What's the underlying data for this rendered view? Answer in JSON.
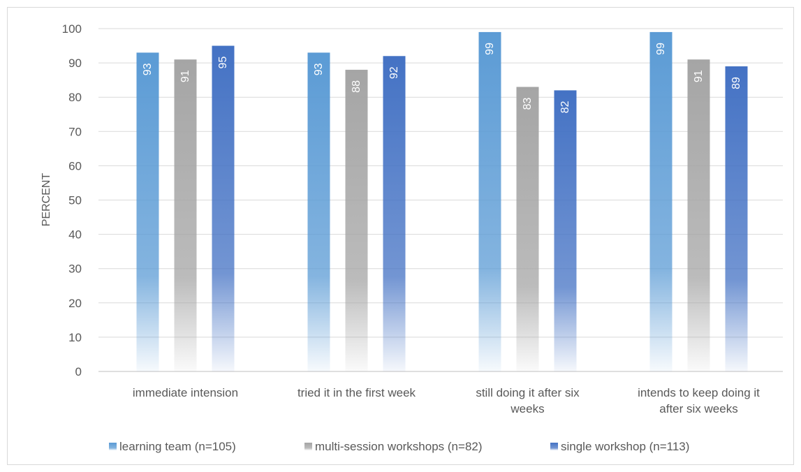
{
  "chart_data": {
    "type": "bar",
    "title": "",
    "xlabel": "",
    "ylabel": "PERCENT",
    "ylim": [
      0,
      100
    ],
    "yticks": [
      0,
      10,
      20,
      30,
      40,
      50,
      60,
      70,
      80,
      90,
      100
    ],
    "grid": true,
    "legend_position": "bottom",
    "categories": [
      [
        "immediate intension"
      ],
      [
        "tried it in the first week"
      ],
      [
        "still doing it after six",
        "weeks"
      ],
      [
        "intends to keep doing it",
        "after six weeks"
      ]
    ],
    "series": [
      {
        "name": "learning team (n=105)",
        "values": [
          93,
          93,
          99,
          99
        ],
        "color": "#5B9BD5"
      },
      {
        "name": "multi-session workshops (n=82)",
        "values": [
          91,
          88,
          83,
          91
        ],
        "color": "#A5A5A5"
      },
      {
        "name": "single workshop (n=113)",
        "values": [
          95,
          92,
          82,
          89
        ],
        "color": "#4472C4"
      }
    ]
  }
}
